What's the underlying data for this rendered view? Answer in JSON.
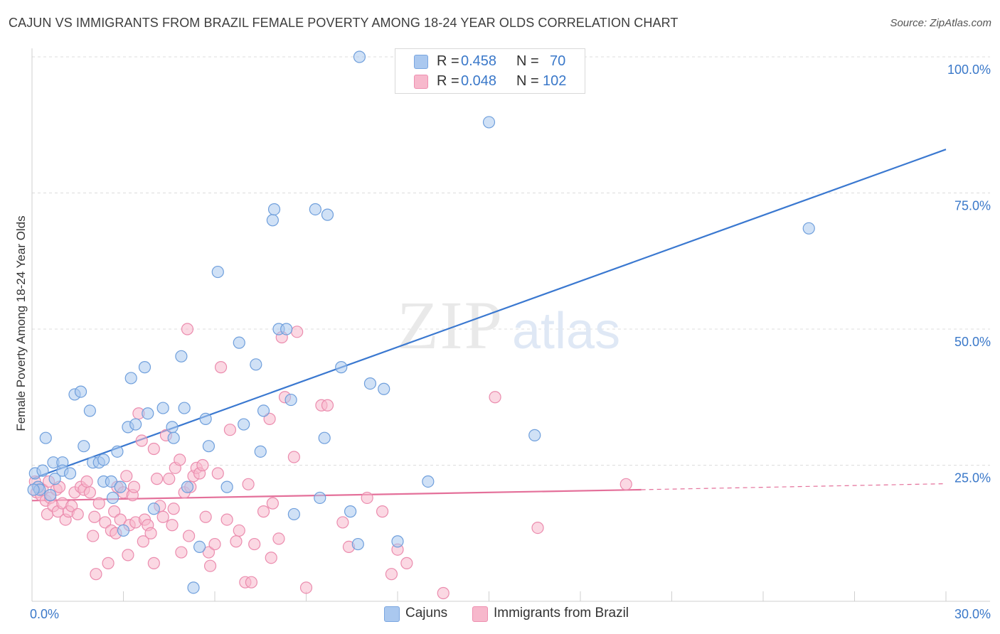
{
  "title": "CAJUN VS IMMIGRANTS FROM BRAZIL FEMALE POVERTY AMONG 18-24 YEAR OLDS CORRELATION CHART",
  "source": "Source: ZipAtlas.com",
  "watermark": {
    "zip": "ZIP",
    "atlas": "atlas"
  },
  "legend_stats": [
    {
      "r_label": "R =",
      "r_value": "0.458",
      "n_label": "N =",
      "n_value": "70",
      "color": "#aac8ef",
      "border": "#7aa6e0"
    },
    {
      "r_label": "R =",
      "r_value": "0.048",
      "n_label": "N =",
      "n_value": "102",
      "color": "#f7b8cc",
      "border": "#ee8fb0"
    }
  ],
  "chart_data": {
    "type": "scatter",
    "title": "CAJUN VS IMMIGRANTS FROM BRAZIL FEMALE POVERTY AMONG 18-24 YEAR OLDS CORRELATION CHART",
    "xlabel": "",
    "ylabel": "Female Poverty Among 18-24 Year Olds",
    "xlim": [
      0,
      30
    ],
    "ylim": [
      0,
      100
    ],
    "x_tick_labels": [
      "0.0%",
      "30.0%"
    ],
    "y_tick_labels": [
      "100.0%",
      "75.0%",
      "50.0%",
      "25.0%"
    ],
    "y_ticks": [
      100,
      75,
      50,
      25
    ],
    "grid": true,
    "legend_position": "bottom",
    "series": [
      {
        "name": "Cajuns",
        "color": "#aac8ef",
        "edge": "#6f9fdc",
        "line_color": "#3a78d0",
        "trend": {
          "x": [
            0,
            30
          ],
          "y": [
            22.5,
            83
          ]
        },
        "points": [
          [
            0.1,
            23.5
          ],
          [
            0.2,
            21.0
          ],
          [
            0.25,
            20.5
          ],
          [
            0.35,
            24.0
          ],
          [
            0.45,
            30.0
          ],
          [
            0.6,
            19.5
          ],
          [
            0.7,
            25.5
          ],
          [
            0.75,
            22.5
          ],
          [
            1.0,
            25.5
          ],
          [
            1.0,
            24.0
          ],
          [
            1.25,
            23.5
          ],
          [
            1.4,
            38.0
          ],
          [
            1.6,
            38.5
          ],
          [
            1.7,
            28.5
          ],
          [
            1.9,
            35.0
          ],
          [
            2.0,
            25.5
          ],
          [
            2.2,
            25.5
          ],
          [
            2.35,
            26.0
          ],
          [
            2.35,
            22.0
          ],
          [
            2.6,
            22.0
          ],
          [
            2.65,
            19.0
          ],
          [
            2.8,
            27.5
          ],
          [
            2.9,
            21.0
          ],
          [
            3.0,
            13.0
          ],
          [
            3.15,
            32.0
          ],
          [
            3.25,
            41.0
          ],
          [
            3.4,
            32.5
          ],
          [
            3.7,
            43.0
          ],
          [
            3.8,
            34.5
          ],
          [
            4.0,
            17.0
          ],
          [
            4.3,
            35.5
          ],
          [
            4.6,
            32.0
          ],
          [
            4.65,
            30.0
          ],
          [
            4.9,
            45.0
          ],
          [
            5.0,
            35.5
          ],
          [
            5.1,
            21.0
          ],
          [
            5.3,
            2.5
          ],
          [
            5.5,
            10.0
          ],
          [
            5.7,
            33.5
          ],
          [
            5.8,
            28.5
          ],
          [
            6.1,
            60.5
          ],
          [
            6.4,
            21.0
          ],
          [
            6.8,
            47.5
          ],
          [
            6.95,
            32.5
          ],
          [
            7.35,
            43.5
          ],
          [
            7.5,
            27.5
          ],
          [
            7.6,
            35.0
          ],
          [
            7.9,
            70.0
          ],
          [
            7.95,
            72.0
          ],
          [
            8.1,
            50.0
          ],
          [
            8.35,
            50.0
          ],
          [
            8.5,
            37.0
          ],
          [
            8.6,
            16.0
          ],
          [
            9.3,
            72.0
          ],
          [
            9.45,
            19.0
          ],
          [
            9.6,
            30.0
          ],
          [
            9.7,
            71.0
          ],
          [
            10.15,
            43.0
          ],
          [
            10.45,
            16.5
          ],
          [
            10.7,
            10.5
          ],
          [
            10.75,
            100.0
          ],
          [
            11.1,
            40.0
          ],
          [
            11.55,
            39.0
          ],
          [
            12.0,
            11.0
          ],
          [
            13.0,
            22.0
          ],
          [
            15.0,
            88.0
          ],
          [
            15.35,
            100.0
          ],
          [
            16.5,
            30.5
          ],
          [
            25.5,
            68.5
          ],
          [
            0.05,
            20.5
          ]
        ]
      },
      {
        "name": "Immigrants from Brazil",
        "color": "#f7b8cc",
        "edge": "#eb8cae",
        "line_color": "#e4709a",
        "trend": {
          "x": [
            0,
            20
          ],
          "y": [
            18.5,
            20.5
          ]
        },
        "trend_dashed": {
          "x": [
            20,
            30
          ],
          "y": [
            20.5,
            21.6
          ]
        },
        "points": [
          [
            0.1,
            22.0
          ],
          [
            0.15,
            20.0
          ],
          [
            0.2,
            21.0
          ],
          [
            0.3,
            19.5
          ],
          [
            0.35,
            20.5
          ],
          [
            0.45,
            18.5
          ],
          [
            0.5,
            16.0
          ],
          [
            0.55,
            22.0
          ],
          [
            0.6,
            19.0
          ],
          [
            0.7,
            17.5
          ],
          [
            0.8,
            20.5
          ],
          [
            0.85,
            16.5
          ],
          [
            0.9,
            21.0
          ],
          [
            1.0,
            18.0
          ],
          [
            1.1,
            15.0
          ],
          [
            1.2,
            16.5
          ],
          [
            1.3,
            17.5
          ],
          [
            1.4,
            20.0
          ],
          [
            1.5,
            16.0
          ],
          [
            1.6,
            21.0
          ],
          [
            1.7,
            20.5
          ],
          [
            1.8,
            22.0
          ],
          [
            1.9,
            20.0
          ],
          [
            2.0,
            12.0
          ],
          [
            2.05,
            15.5
          ],
          [
            2.1,
            5.0
          ],
          [
            2.2,
            18.0
          ],
          [
            2.4,
            14.5
          ],
          [
            2.5,
            7.0
          ],
          [
            2.6,
            13.0
          ],
          [
            2.7,
            16.5
          ],
          [
            2.75,
            12.5
          ],
          [
            2.8,
            21.0
          ],
          [
            2.9,
            15.0
          ],
          [
            3.0,
            20.0
          ],
          [
            3.1,
            23.0
          ],
          [
            3.15,
            8.5
          ],
          [
            3.2,
            14.0
          ],
          [
            3.3,
            19.5
          ],
          [
            3.35,
            21.0
          ],
          [
            3.4,
            14.5
          ],
          [
            3.5,
            34.5
          ],
          [
            3.6,
            29.5
          ],
          [
            3.65,
            11.0
          ],
          [
            3.7,
            15.0
          ],
          [
            3.8,
            14.0
          ],
          [
            3.9,
            12.5
          ],
          [
            4.0,
            28.0
          ],
          [
            4.0,
            7.0
          ],
          [
            4.1,
            22.5
          ],
          [
            4.2,
            17.5
          ],
          [
            4.3,
            15.5
          ],
          [
            4.4,
            30.5
          ],
          [
            4.5,
            22.5
          ],
          [
            4.6,
            14.0
          ],
          [
            4.65,
            17.0
          ],
          [
            4.7,
            24.5
          ],
          [
            4.85,
            26.0
          ],
          [
            4.9,
            9.0
          ],
          [
            5.0,
            20.0
          ],
          [
            5.1,
            50.0
          ],
          [
            5.15,
            12.0
          ],
          [
            5.2,
            21.0
          ],
          [
            5.3,
            23.0
          ],
          [
            5.4,
            24.5
          ],
          [
            5.5,
            23.5
          ],
          [
            5.6,
            25.0
          ],
          [
            5.7,
            15.5
          ],
          [
            5.8,
            9.0
          ],
          [
            5.85,
            6.5
          ],
          [
            6.0,
            10.5
          ],
          [
            6.1,
            23.5
          ],
          [
            6.2,
            43.0
          ],
          [
            6.4,
            15.0
          ],
          [
            6.5,
            31.5
          ],
          [
            6.7,
            11.0
          ],
          [
            6.8,
            13.0
          ],
          [
            7.0,
            3.5
          ],
          [
            7.1,
            21.5
          ],
          [
            7.2,
            3.5
          ],
          [
            7.3,
            10.5
          ],
          [
            7.6,
            16.5
          ],
          [
            7.8,
            33.5
          ],
          [
            7.85,
            8.0
          ],
          [
            7.9,
            18.0
          ],
          [
            8.1,
            11.5
          ],
          [
            8.2,
            48.5
          ],
          [
            8.3,
            37.5
          ],
          [
            8.6,
            26.5
          ],
          [
            8.7,
            49.5
          ],
          [
            9.0,
            2.5
          ],
          [
            9.5,
            36.0
          ],
          [
            9.7,
            36.0
          ],
          [
            10.2,
            14.5
          ],
          [
            10.4,
            10.0
          ],
          [
            11.0,
            19.0
          ],
          [
            11.5,
            16.5
          ],
          [
            11.8,
            5.0
          ],
          [
            12.0,
            9.5
          ],
          [
            12.3,
            7.0
          ],
          [
            13.5,
            1.5
          ],
          [
            15.2,
            37.5
          ],
          [
            16.6,
            13.5
          ],
          [
            19.5,
            21.5
          ]
        ]
      }
    ]
  }
}
